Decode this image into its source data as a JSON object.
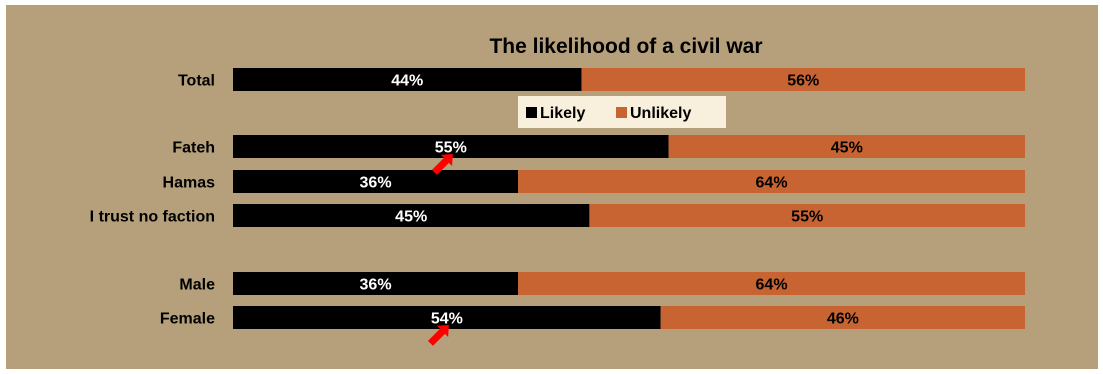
{
  "chart_data": {
    "type": "bar",
    "orientation": "horizontal",
    "stacked": true,
    "title": "The likelihood of a civil war",
    "categories": [
      "Total",
      "Fateh",
      "Hamas",
      "I trust no faction",
      "Male",
      "Female"
    ],
    "series": [
      {
        "name": "Likely",
        "values": [
          44,
          55,
          36,
          45,
          36,
          54
        ],
        "labels": [
          "44%",
          "55%",
          "36%",
          "45%",
          "36%",
          "54%"
        ]
      },
      {
        "name": "Unlikely",
        "values": [
          56,
          45,
          64,
          55,
          64,
          46
        ],
        "labels": [
          "56%",
          "45%",
          "64%",
          "55%",
          "64%",
          "46%"
        ]
      }
    ],
    "xlim": [
      0,
      100
    ],
    "legend": {
      "placement": "center, below first bar",
      "entries": [
        "Likely",
        "Unlikely"
      ]
    },
    "grid": false,
    "highlighted_categories": [
      "Fateh",
      "Female"
    ],
    "colors": {
      "Likely": "#000000",
      "Unlikely": "#c86432",
      "background": "#b5a07b",
      "legend_background": "#f8efdc",
      "arrow": "#ff0000"
    }
  }
}
